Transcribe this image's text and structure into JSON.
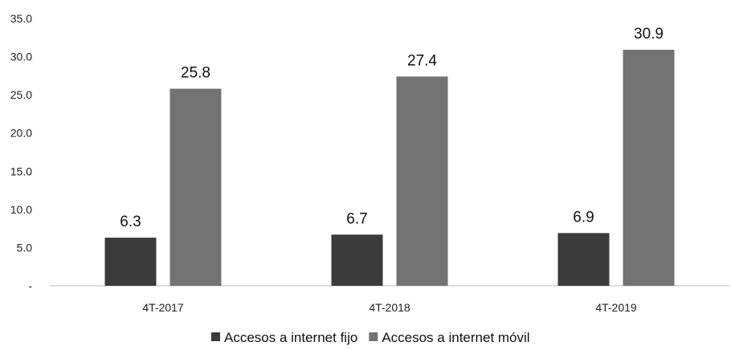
{
  "chart_data": {
    "type": "bar",
    "categories": [
      "4T-2017",
      "4T-2018",
      "4T-2019"
    ],
    "series": [
      {
        "name": "Accesos a internet fijo",
        "values": [
          6.3,
          6.7,
          6.9
        ],
        "color": "#3b3b3b"
      },
      {
        "name": "Accesos a internet móvil",
        "values": [
          25.8,
          27.4,
          30.9
        ],
        "color": "#737373"
      }
    ],
    "data_labels": [
      [
        "6.3",
        "6.7",
        "6.9"
      ],
      [
        "25.8",
        "27.4",
        "30.9"
      ]
    ],
    "y_ticks": [
      "-",
      "5.0",
      "10.0",
      "15.0",
      "20.0",
      "25.0",
      "30.0",
      "35.0"
    ],
    "ylim": [
      0,
      35
    ],
    "grid": false,
    "legend_position": "bottom-center"
  }
}
